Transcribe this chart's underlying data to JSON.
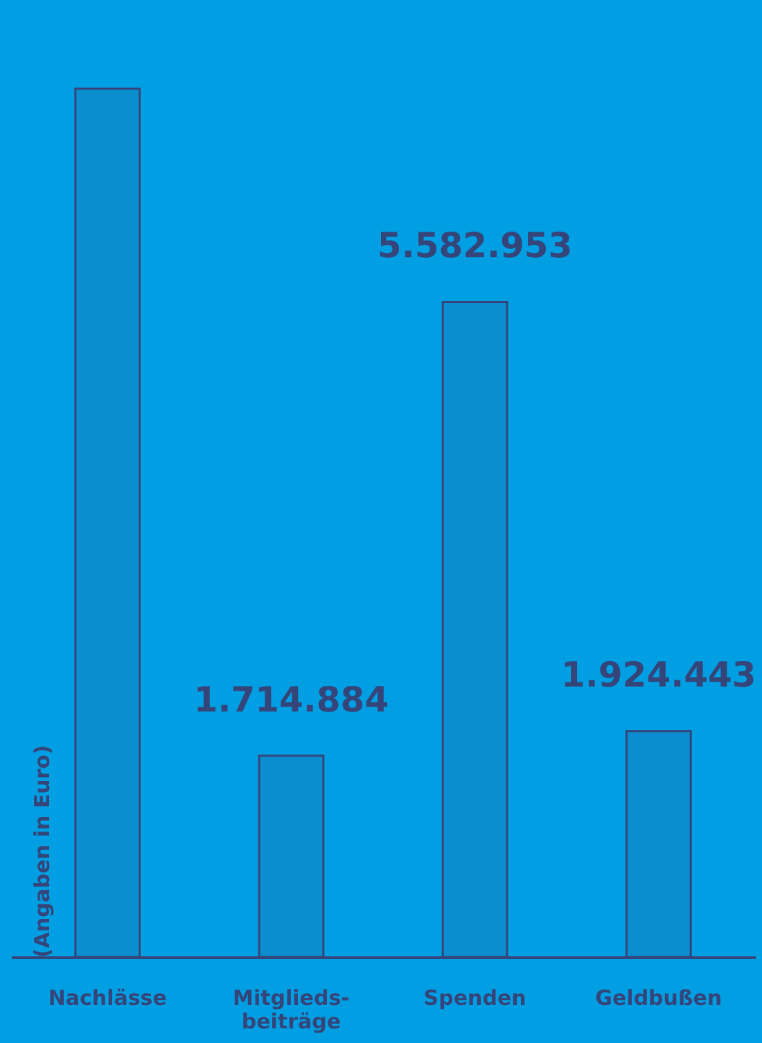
{
  "chart_data": {
    "type": "bar",
    "categories": [
      "Nachlässe",
      "Mitglieds-\nbeiträge",
      "Spenden",
      "Geldbußen"
    ],
    "values": [
      7400000,
      1714884,
      5582953,
      1924443
    ],
    "value_labels": [
      null,
      "1.714.884",
      "5.582.953",
      "1.924.443"
    ],
    "color": "#35457a",
    "ylabel": "(Angaben in Euro)",
    "ylim": [
      0,
      7400000
    ],
    "tick_labels": "x",
    "grid": false
  }
}
